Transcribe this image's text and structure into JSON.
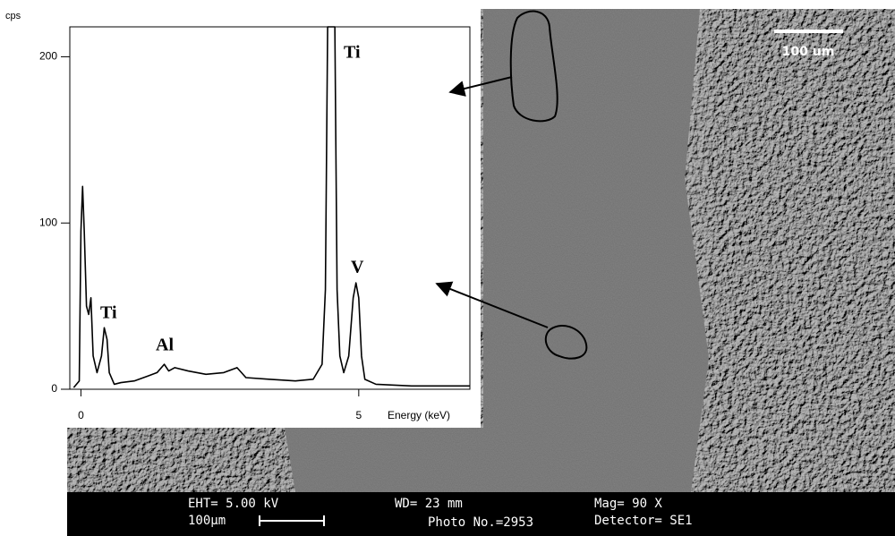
{
  "chart_data": {
    "type": "line",
    "y_label": "cps",
    "x_label": "Energy (keV)",
    "x": [
      -0.13,
      -0.03,
      0,
      0.03,
      0.06,
      0.1,
      0.14,
      0.18,
      0.22,
      0.29,
      0.37,
      0.42,
      0.47,
      0.51,
      0.6,
      0.72,
      0.96,
      1.21,
      1.37,
      1.5,
      1.58,
      1.69,
      1.93,
      2.25,
      2.57,
      2.81,
      2.97,
      3.38,
      3.86,
      4.18,
      4.34,
      4.4,
      4.44,
      4.57,
      4.61,
      4.66,
      4.73,
      4.82,
      4.9,
      4.95,
      5.0,
      5.05,
      5.11,
      5.31,
      5.95,
      7.0
    ],
    "values": [
      1,
      5,
      95,
      122,
      95,
      50,
      45,
      55,
      20,
      10,
      20,
      37,
      30,
      10,
      3,
      4,
      5,
      8,
      10,
      15,
      11,
      13,
      11,
      9,
      10,
      13,
      7,
      6,
      5,
      6,
      15,
      60,
      218,
      218,
      60,
      20,
      10,
      20,
      55,
      64,
      55,
      20,
      6,
      3,
      2,
      2
    ],
    "color": "#000000",
    "xlim": [
      -0.2,
      7.0
    ],
    "ylim": [
      0,
      218
    ],
    "xticks": [
      0,
      5
    ],
    "yticks": [
      0,
      100,
      200
    ],
    "annotations": [
      "Ti",
      "Ti",
      "Al",
      "V"
    ]
  },
  "sem": {
    "scale_label": "100 um",
    "eht": "EHT= 5.00 kV",
    "wd": "WD=  23 mm",
    "mag": "Mag=    90   X",
    "scale": "100µm",
    "photo": "Photo No.=2953",
    "detector": "Detector= SE1"
  }
}
